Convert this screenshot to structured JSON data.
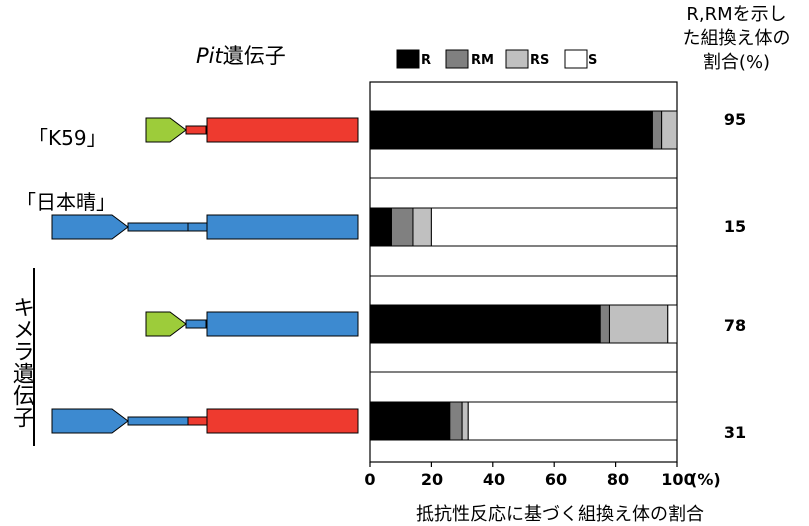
{
  "gene_header": {
    "italic": "Pit",
    "rest": "遺伝子"
  },
  "right_header": [
    "R,RMを示し",
    "た組換え体の",
    "割合(%)"
  ],
  "rows": [
    {
      "label": "「K59」",
      "percent": "95",
      "structure": [
        "green-small",
        "red-link",
        "red-large"
      ]
    },
    {
      "label": "「日本晴」",
      "percent": "15",
      "structure": [
        "blue-small",
        "blue-link",
        "blue-large"
      ]
    },
    {
      "label": "",
      "percent": "78",
      "structure": [
        "green-small",
        "blue-link",
        "blue-large"
      ]
    },
    {
      "label": "",
      "percent": "31",
      "structure": [
        "blue-small",
        "red-link",
        "red-large"
      ]
    }
  ],
  "chimera_label": "キメラ遺伝子",
  "colors": {
    "green": "#9dcc3a",
    "red": "#ee3a2f",
    "blue": "#3d8ad0",
    "R": "#000000",
    "RM": "#808080",
    "RS": "#c0c0c0",
    "S": "#ffffff"
  },
  "chart_data": {
    "type": "bar",
    "orientation": "horizontal",
    "stacked": true,
    "categories": [
      "「K59」",
      "「日本晴」",
      "",
      ""
    ],
    "series": [
      {
        "name": "R",
        "values": [
          92,
          7,
          75,
          26
        ]
      },
      {
        "name": "RM",
        "values": [
          3,
          7,
          3,
          4
        ]
      },
      {
        "name": "RS",
        "values": [
          5,
          6,
          19,
          2
        ]
      },
      {
        "name": "S",
        "values": [
          0,
          80,
          3,
          68
        ]
      }
    ],
    "xlim": [
      0,
      100
    ],
    "xticks": [
      "0",
      "20",
      "40",
      "60",
      "80",
      "100"
    ],
    "xunit": "(%)",
    "xlabel": "抵抗性反応に基づく組換え体の割合",
    "legend": [
      "R",
      "RM",
      "RS",
      "S"
    ],
    "legend_position": "top"
  }
}
